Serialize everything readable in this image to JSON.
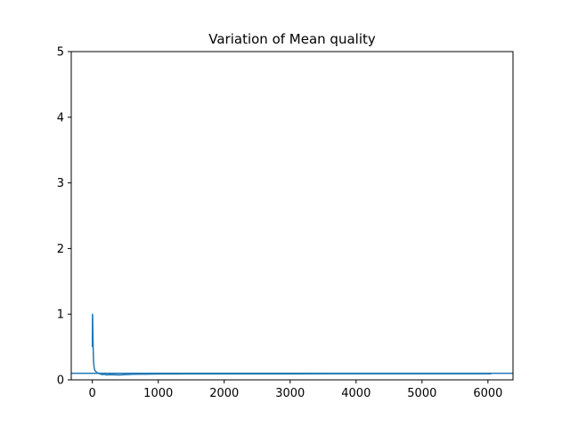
{
  "chart_data": {
    "type": "line",
    "title": "Variation of Mean quality",
    "xlabel": "",
    "ylabel": "",
    "xlim": [
      -320,
      6380
    ],
    "ylim": [
      0,
      5
    ],
    "x_ticks": [
      0,
      1000,
      2000,
      3000,
      4000,
      5000,
      6000
    ],
    "x_tick_labels": [
      "0",
      "1000",
      "2000",
      "3000",
      "4000",
      "5000",
      "6000"
    ],
    "y_ticks": [
      0,
      1,
      2,
      3,
      4,
      5
    ],
    "y_tick_labels": [
      "0",
      "1",
      "2",
      "3",
      "4",
      "5"
    ],
    "grid": false,
    "line_color": "#1f77b4",
    "series": [
      {
        "x": [
          0,
          2,
          5,
          8,
          12,
          18,
          25,
          35,
          50,
          70,
          90,
          120,
          150,
          180,
          220,
          260,
          300,
          350,
          400,
          450,
          500,
          550,
          600,
          700,
          800,
          900,
          1000,
          1200,
          1400,
          1600,
          2000,
          2500,
          3000,
          3500,
          4000,
          4500,
          5000,
          5500,
          6000,
          6050
        ],
        "y": [
          0.5,
          1.0,
          0.95,
          0.7,
          0.5,
          0.3,
          0.2,
          0.15,
          0.13,
          0.11,
          0.1,
          0.09,
          0.08,
          0.085,
          0.075,
          0.08,
          0.078,
          0.076,
          0.075,
          0.077,
          0.079,
          0.082,
          0.085,
          0.086,
          0.087,
          0.088,
          0.089,
          0.09,
          0.091,
          0.091,
          0.092,
          0.092,
          0.092,
          0.093,
          0.093,
          0.093,
          0.093,
          0.093,
          0.093,
          0.093
        ]
      }
    ],
    "hlines": [
      0.1
    ]
  }
}
